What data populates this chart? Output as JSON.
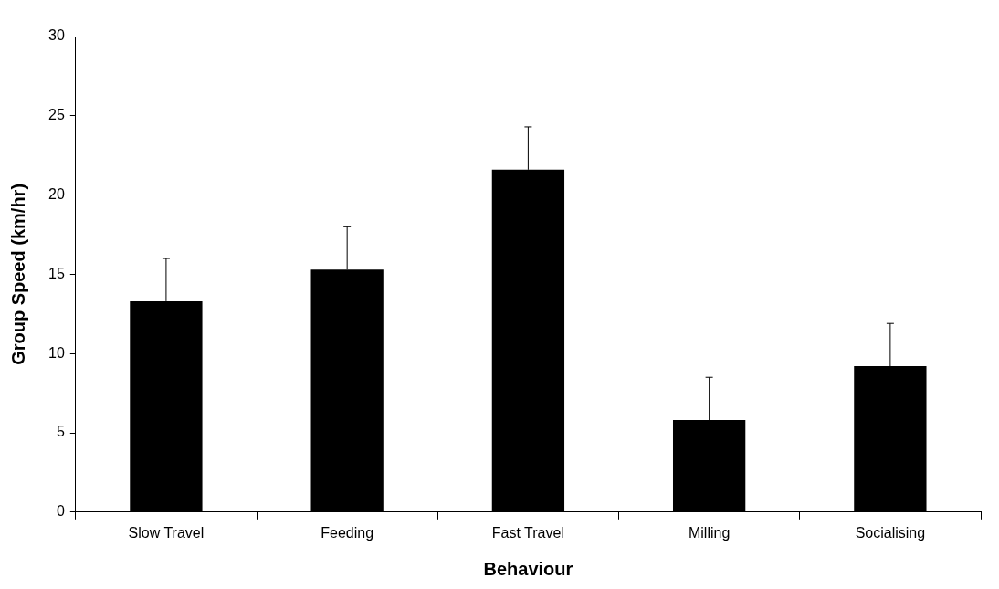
{
  "chart_data": {
    "type": "bar",
    "xlabel": "Behaviour",
    "ylabel": "Group Speed (km/hr)",
    "categories": [
      "Slow Travel",
      "Feeding",
      "Fast Travel",
      "Milling",
      "Socialising"
    ],
    "values": [
      13.3,
      15.3,
      21.6,
      5.8,
      9.2
    ],
    "errors": [
      [
        13.3,
        16.0
      ],
      [
        15.3,
        18.0
      ],
      [
        21.6,
        24.3
      ],
      [
        5.8,
        8.5
      ],
      [
        9.2,
        11.9
      ]
    ],
    "color": "#000000",
    "ylim": [
      0,
      30
    ],
    "yticks": [
      0,
      5,
      10,
      15,
      20,
      25,
      30
    ],
    "grid": false,
    "legend": false
  }
}
